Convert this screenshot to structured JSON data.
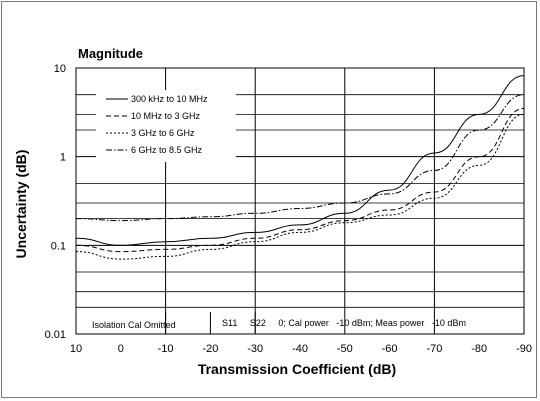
{
  "chart_data": {
    "type": "line",
    "title": "Magnitude",
    "xlabel": "Transmission Coefficient (dB)",
    "ylabel": "Uncertainty (dB)",
    "xlim": [
      10,
      -90
    ],
    "ylim": [
      0.01,
      10
    ],
    "y_scale": "log",
    "grid": true,
    "x_ticks": [
      10,
      0,
      -10,
      -20,
      -30,
      -40,
      -50,
      -60,
      -70,
      -80,
      -90
    ],
    "x_tick_labels": [
      "10",
      "0",
      "-10",
      "-20",
      "-30",
      "-40",
      "-50",
      "-60",
      "-70",
      "-80",
      "-90"
    ],
    "y_ticks": [
      0.01,
      0.1,
      1,
      10
    ],
    "y_tick_labels": [
      "0.01",
      "0.1",
      "1",
      "10"
    ],
    "x": [
      10,
      0,
      -10,
      -20,
      -30,
      -40,
      -50,
      -60,
      -70,
      -80,
      -90
    ],
    "series": [
      {
        "name": "300 kHz to 10 MHz",
        "dash": "solid",
        "values": [
          0.12,
          0.1,
          0.11,
          0.12,
          0.14,
          0.17,
          0.23,
          0.42,
          1.1,
          3.0,
          8.2
        ]
      },
      {
        "name": "10 MHz to 3 GHz",
        "dash": "dash",
        "values": [
          0.1,
          0.085,
          0.09,
          0.1,
          0.12,
          0.15,
          0.19,
          0.25,
          0.4,
          1.0,
          3.5
        ]
      },
      {
        "name": "3 GHz to 6 GHz",
        "dash": "dot",
        "values": [
          0.085,
          0.07,
          0.075,
          0.09,
          0.11,
          0.14,
          0.18,
          0.22,
          0.34,
          0.8,
          3.0
        ]
      },
      {
        "name": "6 GHz to 8.5 GHz",
        "dash": "dashdot",
        "values": [
          0.2,
          0.19,
          0.2,
          0.21,
          0.23,
          0.26,
          0.3,
          0.38,
          0.7,
          2.0,
          5.0
        ]
      }
    ],
    "annotations": {
      "left": "Isolation Cal Omitted",
      "right": "S11     S22     0; Cal power   -10 dBm; Meas power   -10 dBm"
    }
  }
}
